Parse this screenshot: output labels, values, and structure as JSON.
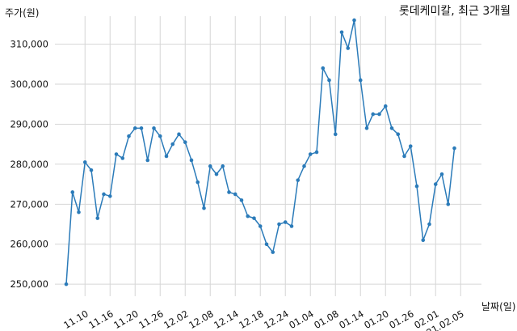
{
  "chart_data": {
    "type": "line",
    "title": "롯데케미칼, 최근 3개월",
    "ylabel": "주가(원)",
    "xlabel": "날짜(일)",
    "ylim": [
      247000,
      317000
    ],
    "yticks": [
      250000,
      260000,
      270000,
      280000,
      290000,
      300000,
      310000
    ],
    "ytick_labels": [
      "250,000",
      "260,000",
      "270,000",
      "280,000",
      "290,000",
      "300,000",
      "310,000"
    ],
    "xtick_labels": [
      "11.10",
      "11.16",
      "11.20",
      "11.26",
      "12.02",
      "12.08",
      "12.14",
      "12.18",
      "12.24",
      "01.04",
      "01.08",
      "01.14",
      "01.20",
      "01.26",
      "02.01",
      "21.02.05"
    ],
    "xtick_index": [
      3,
      7,
      11,
      15,
      19,
      23,
      27,
      31,
      35,
      39,
      43,
      47,
      51,
      55,
      59,
      63
    ],
    "grid": true,
    "line_color": "#2b7bb9",
    "series": [
      {
        "values": [
          250000,
          273000,
          268000,
          280500,
          278500,
          266500,
          272500,
          272000,
          282500,
          281500,
          287000,
          289000,
          289000,
          281000,
          289000,
          287000,
          282000,
          285000,
          287500,
          285500,
          281000,
          275500,
          269000,
          279500,
          277500,
          279500,
          273000,
          272500,
          271000,
          267000,
          266500,
          264500,
          260000,
          258000,
          265000,
          265500,
          264500,
          276000,
          279500,
          282500,
          283000,
          304000,
          301000,
          287500,
          313000,
          309000,
          316000,
          301000,
          289000,
          292500,
          292500,
          294500,
          289000,
          287500,
          282000,
          284500,
          274500,
          261000,
          265000,
          275000,
          277500,
          270000,
          284000
        ]
      }
    ]
  }
}
